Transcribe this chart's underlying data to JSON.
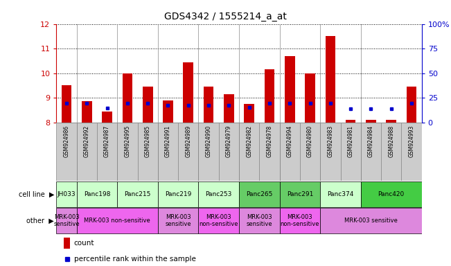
{
  "title": "GDS4342 / 1555214_a_at",
  "samples": [
    "GSM924986",
    "GSM924992",
    "GSM924987",
    "GSM924995",
    "GSM924985",
    "GSM924991",
    "GSM924989",
    "GSM924990",
    "GSM924979",
    "GSM924982",
    "GSM924978",
    "GSM924994",
    "GSM924980",
    "GSM924983",
    "GSM924981",
    "GSM924984",
    "GSM924988",
    "GSM924993"
  ],
  "count_values": [
    9.5,
    8.85,
    8.45,
    10.0,
    9.45,
    8.9,
    10.45,
    9.45,
    9.15,
    8.75,
    10.15,
    10.7,
    10.0,
    11.5,
    8.1,
    8.1,
    8.1,
    9.45
  ],
  "percentile_values": [
    8.78,
    8.78,
    8.58,
    8.78,
    8.78,
    8.68,
    8.68,
    8.68,
    8.68,
    8.62,
    8.78,
    8.78,
    8.78,
    8.78,
    8.55,
    8.55,
    8.55,
    8.78
  ],
  "ylim_left": [
    8,
    12
  ],
  "ylim_right": [
    0,
    100
  ],
  "yticks_left": [
    8,
    9,
    10,
    11,
    12
  ],
  "yticks_right": [
    0,
    25,
    50,
    75,
    100
  ],
  "bar_color": "#cc0000",
  "dot_color": "#0000cc",
  "grid_color": "#000000",
  "cell_lines": [
    {
      "name": "JH033",
      "start": 0,
      "end": 1,
      "color": "#ccffcc"
    },
    {
      "name": "Panc198",
      "start": 1,
      "end": 3,
      "color": "#ccffcc"
    },
    {
      "name": "Panc215",
      "start": 3,
      "end": 5,
      "color": "#ccffcc"
    },
    {
      "name": "Panc219",
      "start": 5,
      "end": 7,
      "color": "#ccffcc"
    },
    {
      "name": "Panc253",
      "start": 7,
      "end": 9,
      "color": "#ccffcc"
    },
    {
      "name": "Panc265",
      "start": 9,
      "end": 11,
      "color": "#66cc66"
    },
    {
      "name": "Panc291",
      "start": 11,
      "end": 13,
      "color": "#66cc66"
    },
    {
      "name": "Panc374",
      "start": 13,
      "end": 15,
      "color": "#ccffcc"
    },
    {
      "name": "Panc420",
      "start": 15,
      "end": 18,
      "color": "#44cc44"
    }
  ],
  "other_labels": [
    {
      "text": "MRK-003\nsensitive",
      "start": 0,
      "end": 1,
      "color": "#dd88dd"
    },
    {
      "text": "MRK-003 non-sensitive",
      "start": 1,
      "end": 5,
      "color": "#ee66ee"
    },
    {
      "text": "MRK-003\nsensitive",
      "start": 5,
      "end": 7,
      "color": "#dd88dd"
    },
    {
      "text": "MRK-003\nnon-sensitive",
      "start": 7,
      "end": 9,
      "color": "#ee66ee"
    },
    {
      "text": "MRK-003\nsensitive",
      "start": 9,
      "end": 11,
      "color": "#dd88dd"
    },
    {
      "text": "MRK-003\nnon-sensitive",
      "start": 11,
      "end": 13,
      "color": "#ee66ee"
    },
    {
      "text": "MRK-003 sensitive",
      "start": 13,
      "end": 18,
      "color": "#dd88dd"
    }
  ],
  "sample_bg_color": "#cccccc",
  "left_axis_color": "#cc0000",
  "right_axis_color": "#0000cc",
  "group_boundaries": [
    1,
    3,
    5,
    7,
    9,
    11,
    13,
    15
  ]
}
